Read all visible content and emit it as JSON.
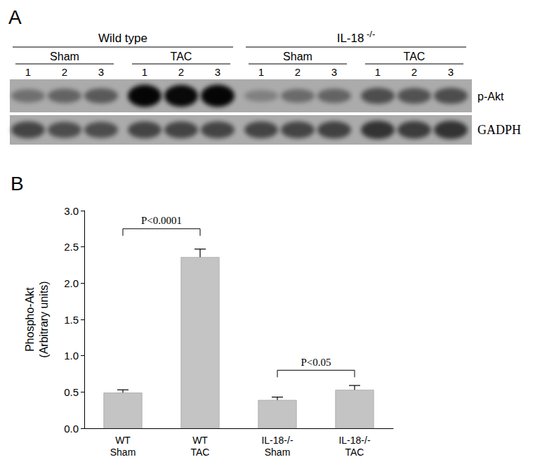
{
  "chart_data": {
    "type": "bar",
    "title": "B",
    "categories": [
      "WT\nSham",
      "WT\nTAC",
      "IL-18-/-\nSham",
      "IL-18-/-\nTAC"
    ],
    "values": [
      0.49,
      2.36,
      0.39,
      0.53
    ],
    "errors": [
      0.04,
      0.11,
      0.04,
      0.06
    ],
    "color": "#c4c4c4",
    "y_label": "Phospho-Akt\n(Arbitrary units)",
    "ylim": [
      0,
      3
    ],
    "yticks": [
      {
        "value": 0,
        "label": "0.0"
      },
      0.5,
      {
        "value": 1,
        "label": "1.0"
      },
      1.5,
      {
        "value": 2,
        "label": "2.0"
      },
      2.5,
      {
        "value": 3,
        "label": "3.0"
      }
    ],
    "grid": false,
    "annotations": [
      {
        "text": "P<0.0001",
        "from": "WT\nSham",
        "to": "WT\nTAC",
        "y": 2.75
      },
      {
        "text": "P<0.05",
        "from": "IL-18-/-\nSham",
        "to": "IL-18-/-\nTAC",
        "y": 0.8
      }
    ]
  },
  "blot": {
    "panel_label": "A",
    "groups": [
      {
        "label": "Wild type",
        "conditions": [
          "Sham",
          "TAC"
        ]
      },
      {
        "label": "IL-18",
        "superscript": "-/-",
        "conditions": [
          "Sham",
          "TAC"
        ]
      }
    ],
    "lanes": [
      "1",
      "2",
      "3"
    ],
    "rows": [
      {
        "label": "p-Akt",
        "intensity": [
          0.35,
          0.42,
          0.48,
          0.97,
          0.95,
          0.97,
          0.25,
          0.38,
          0.42,
          0.55,
          0.52,
          0.55
        ]
      },
      {
        "label": "GADPH",
        "intensity": [
          0.6,
          0.55,
          0.55,
          0.6,
          0.6,
          0.6,
          0.6,
          0.6,
          0.62,
          0.7,
          0.65,
          0.7
        ]
      }
    ]
  }
}
